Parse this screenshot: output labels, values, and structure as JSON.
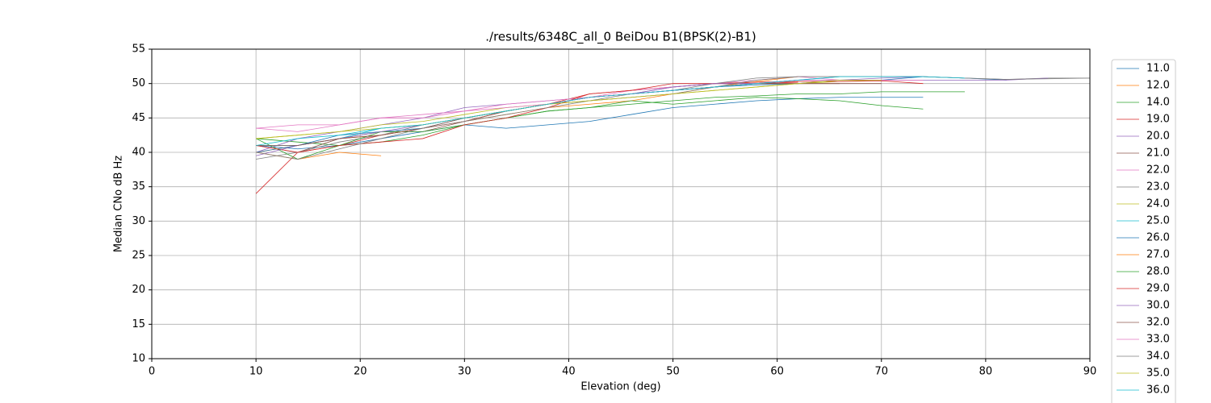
{
  "chart_data": {
    "type": "line",
    "title": "./results/6348C_all_0 BeiDou B1(BPSK(2)-B1)",
    "xlabel": "Elevation (deg)",
    "ylabel": "Median CNo dB Hz",
    "xlim": [
      0,
      90
    ],
    "ylim": [
      10,
      55
    ],
    "xticks": [
      0,
      10,
      20,
      30,
      40,
      50,
      60,
      70,
      80,
      90
    ],
    "yticks": [
      10,
      15,
      20,
      25,
      30,
      35,
      40,
      45,
      50,
      55
    ],
    "grid": true,
    "legend": "right",
    "x": [
      10,
      14,
      18,
      22,
      26,
      30,
      34,
      38,
      42,
      46,
      50,
      54,
      58,
      62,
      66,
      70,
      74,
      78,
      82,
      86,
      90
    ],
    "series": [
      {
        "name": "11.0",
        "color": "#1f77b4",
        "values": [
          41,
          40.5,
          41,
          42,
          43,
          44,
          43.5,
          44,
          44.5,
          45.5,
          46.5,
          47,
          47.5,
          47.8,
          48,
          48,
          48,
          null,
          null,
          null,
          null
        ]
      },
      {
        "name": "12.0",
        "color": "#ff7f0e",
        "values": [
          40,
          41,
          42,
          42.5,
          43.5,
          44.5,
          45.5,
          46.5,
          47,
          47.5,
          48.5,
          49.5,
          50.3,
          51,
          null,
          null,
          null,
          null,
          null,
          null,
          null
        ]
      },
      {
        "name": "14.0",
        "color": "#2ca02c",
        "values": [
          42,
          41.5,
          41,
          41.5,
          42.5,
          44,
          45,
          46,
          46.5,
          47.5,
          47,
          47.5,
          48,
          47.8,
          47.5,
          46.8,
          46.3,
          null,
          null,
          null,
          null
        ]
      },
      {
        "name": "19.0",
        "color": "#d62728",
        "values": [
          34,
          40,
          41,
          42.5,
          43.5,
          44.5,
          46,
          47,
          48.5,
          49,
          49.5,
          50,
          50,
          50.2,
          null,
          null,
          null,
          null,
          null,
          null,
          null
        ]
      },
      {
        "name": "20.0",
        "color": "#9467bd",
        "values": [
          40,
          42,
          43,
          44,
          45,
          46.5,
          47,
          47.5,
          48,
          48.5,
          49.5,
          50,
          50,
          50.5,
          50.5,
          50.8,
          51,
          null,
          null,
          null,
          null
        ]
      },
      {
        "name": "21.0",
        "color": "#8c564b",
        "values": [
          41,
          40,
          42,
          43,
          43,
          44.5,
          46,
          47,
          48,
          48.5,
          49,
          49.5,
          50,
          50,
          50,
          null,
          null,
          null,
          null,
          null,
          null
        ]
      },
      {
        "name": "22.0",
        "color": "#e377c2",
        "values": [
          43.5,
          44,
          44,
          45,
          45.5,
          46,
          47,
          47.5,
          48,
          49,
          49.5,
          50,
          50.5,
          51,
          50.5,
          50.5,
          50.5,
          null,
          null,
          null,
          null
        ]
      },
      {
        "name": "23.0",
        "color": "#7f7f7f",
        "values": [
          39,
          40,
          41.5,
          42.5,
          44,
          45,
          46,
          47,
          47.5,
          48.5,
          49,
          50,
          50.8,
          51,
          51,
          51,
          51,
          50.8,
          50.6,
          50.8,
          50.8
        ]
      },
      {
        "name": "24.0",
        "color": "#bcbd22",
        "values": [
          42,
          42.5,
          43,
          44,
          44.5,
          45.5,
          46.5,
          47,
          47.5,
          48,
          48.5,
          49,
          49.5,
          50,
          50.3,
          50.5,
          null,
          null,
          null,
          null,
          null
        ]
      },
      {
        "name": "25.0",
        "color": "#17becf",
        "values": [
          41,
          41,
          42,
          43.5,
          44,
          45,
          46,
          47,
          48,
          48.5,
          49,
          49.5,
          50,
          50.5,
          51,
          51,
          51,
          null,
          null,
          null,
          null
        ]
      },
      {
        "name": "26.0",
        "color": "#1f77b4",
        "values": [
          40,
          41,
          42.5,
          43,
          43.5,
          45,
          46,
          47,
          48,
          48.5,
          49,
          49.5,
          49.8,
          50,
          50.5,
          50.5,
          51,
          50.8,
          50.5,
          null,
          null
        ]
      },
      {
        "name": "27.0",
        "color": "#ff7f0e",
        "values": [
          40,
          39,
          40,
          39.5,
          null,
          null,
          null,
          null,
          null,
          null,
          null,
          null,
          null,
          null,
          null,
          null,
          null,
          null,
          null,
          null,
          null
        ]
      },
      {
        "name": "28.0",
        "color": "#2ca02c",
        "values": [
          42,
          39,
          41,
          43,
          43,
          44,
          45,
          46,
          46.5,
          47,
          47.5,
          48,
          48.2,
          48.5,
          48.5,
          48.8,
          48.8,
          48.8,
          null,
          null,
          null
        ]
      },
      {
        "name": "29.0",
        "color": "#d62728",
        "values": [
          41,
          40,
          41,
          41.5,
          42,
          44,
          45,
          46.5,
          48.5,
          49,
          50,
          50,
          50.2,
          50.3,
          50.3,
          50.4,
          50,
          null,
          null,
          null,
          null
        ]
      },
      {
        "name": "30.0",
        "color": "#9467bd",
        "values": [
          39.5,
          41,
          42,
          43,
          44,
          45,
          46,
          47,
          48,
          48.5,
          49.5,
          50,
          50,
          50.5,
          50.5,
          50.5,
          50.5,
          50.5,
          50.5,
          50.8,
          null
        ]
      },
      {
        "name": "32.0",
        "color": "#8c564b",
        "values": [
          41,
          41,
          42,
          42.5,
          43.5,
          45,
          46,
          47,
          48,
          48.5,
          49,
          49.5,
          50,
          50,
          50,
          50,
          null,
          null,
          null,
          null,
          null
        ]
      },
      {
        "name": "33.0",
        "color": "#e377c2",
        "values": [
          43.5,
          43,
          44,
          45,
          45,
          46,
          46.5,
          47,
          48,
          48.5,
          49,
          49.5,
          50,
          50.5,
          50.5,
          50.5,
          50.5,
          null,
          null,
          null,
          null
        ]
      },
      {
        "name": "34.0",
        "color": "#7f7f7f",
        "values": [
          40,
          39,
          40.5,
          42,
          43.5,
          44.5,
          45.5,
          46.5,
          47.5,
          48,
          48.5,
          49.5,
          50.5,
          51,
          51,
          51,
          51,
          50.8,
          50.6,
          50.7,
          50.8
        ]
      },
      {
        "name": "35.0",
        "color": "#bcbd22",
        "values": [
          42,
          42.5,
          43,
          43.5,
          44,
          45,
          46,
          47,
          47.5,
          48,
          48.5,
          49,
          49.5,
          50,
          50.5,
          50.5,
          null,
          null,
          null,
          null,
          null
        ]
      },
      {
        "name": "36.0",
        "color": "#17becf",
        "values": [
          41,
          42,
          42.5,
          43.5,
          44,
          45,
          46,
          47,
          48,
          48.5,
          49,
          49.5,
          50,
          50.5,
          51,
          51,
          51,
          50.8,
          null,
          null,
          null
        ]
      }
    ]
  }
}
